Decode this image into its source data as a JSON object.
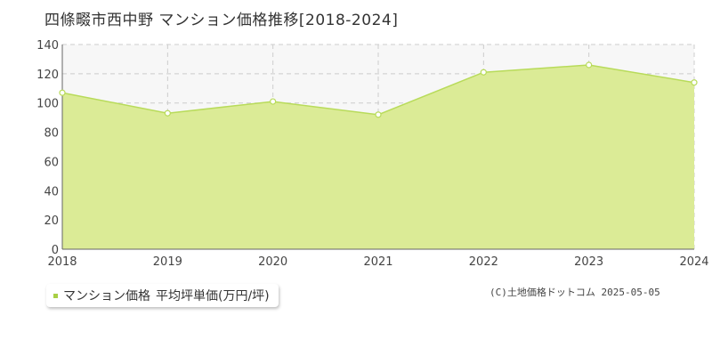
{
  "title": "四條畷市西中野 マンション価格推移[2018-2024]",
  "legend": {
    "series_label": "マンション価格",
    "unit_label": "平均坪単価(万円/坪)"
  },
  "copyright": "(C)土地価格ドットコム 2025-05-05",
  "colors": {
    "area_fill": "#dbeb96",
    "line": "#b8db5a",
    "marker_stroke": "#b8db5a",
    "marker_fill": "#ffffff",
    "plot_bg": "#f7f7f7",
    "grid": "#cccccc",
    "legend_swatch": "#a8cf45"
  },
  "chart_data": {
    "type": "area",
    "x": [
      2018,
      2019,
      2020,
      2021,
      2022,
      2023,
      2024
    ],
    "series": [
      {
        "values": [
          107,
          93,
          101,
          92,
          121,
          126,
          114
        ]
      }
    ],
    "xlim": [
      2018,
      2024
    ],
    "ylim": [
      0,
      140
    ],
    "yticks": [
      0,
      20,
      40,
      60,
      80,
      100,
      120,
      140
    ],
    "xticks": [
      "2018",
      "2019",
      "2020",
      "2021",
      "2022",
      "2023",
      "2024"
    ],
    "grid": true,
    "grid_style": "dashed",
    "legend_position": "bottom-left"
  }
}
